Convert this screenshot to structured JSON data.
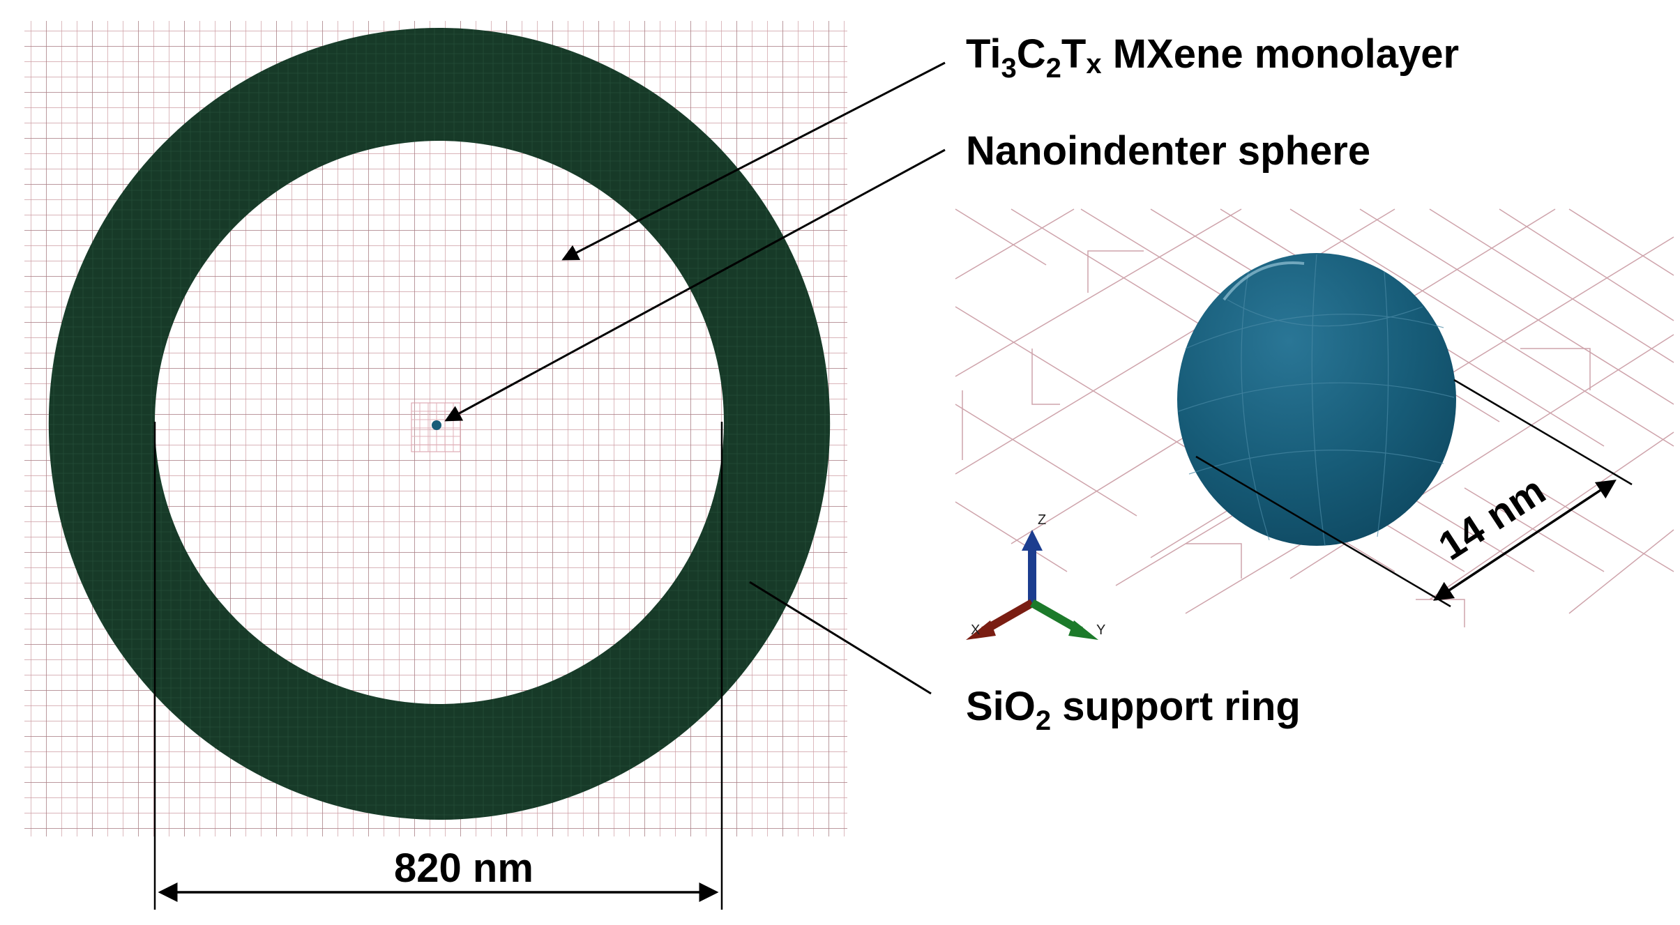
{
  "labels": {
    "monolayer": {
      "el": "Ti",
      "sub1": "3",
      "c": "C",
      "sub2": "2",
      "t": "T",
      "sub3": "x",
      "rest": " MXene monolayer"
    },
    "sphere": "Nanoindenter sphere",
    "ring": {
      "pre": "SiO",
      "sub": "2",
      "post": " support ring"
    }
  },
  "dimensions": {
    "ring_diameter": "820 nm",
    "sphere_diameter": "14 nm"
  },
  "axes": {
    "z": "Z",
    "x": "X",
    "y": "Y"
  },
  "colors": {
    "ring": "#173a28",
    "sphere": "#175c78",
    "mesh": "#c0808a",
    "axis_z": "#1c3d8f",
    "axis_x": "#7a1d12",
    "axis_y": "#1c7a2a"
  }
}
